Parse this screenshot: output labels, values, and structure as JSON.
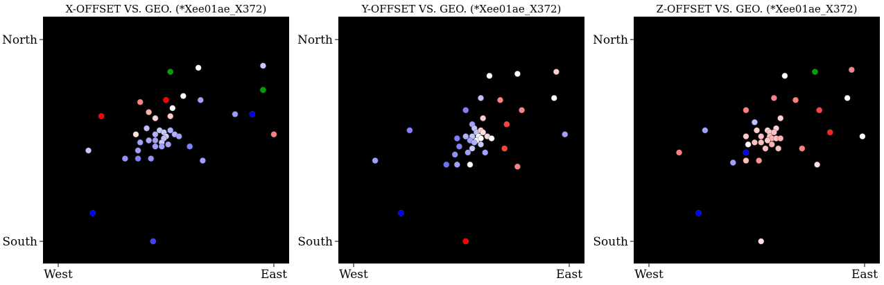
{
  "chart_data": [
    {
      "type": "scatter",
      "title": "X-OFFSET VS. GEO. (*Xee01ae_X372)",
      "xticks": [
        "West",
        "East"
      ],
      "yticks": [
        "South",
        "North"
      ],
      "xlim": [
        0,
        1
      ],
      "ylim": [
        0,
        1
      ],
      "background": "#000000",
      "points": [
        {
          "x": 0.2,
          "y": 0.62,
          "color": "#ff0000"
        },
        {
          "x": 0.5,
          "y": 0.7,
          "color": "#ff0000"
        },
        {
          "x": 0.16,
          "y": 0.14,
          "color": "#0000ff"
        },
        {
          "x": 0.9,
          "y": 0.63,
          "color": "#0000ff"
        },
        {
          "x": 0.52,
          "y": 0.84,
          "color": "#00a000"
        },
        {
          "x": 0.65,
          "y": 0.86,
          "color": "#ffffff"
        },
        {
          "x": 0.95,
          "y": 0.75,
          "color": "#00a000"
        },
        {
          "x": 0.95,
          "y": 0.87,
          "color": "#c8c8ff"
        },
        {
          "x": 0.58,
          "y": 0.72,
          "color": "#ffffff"
        },
        {
          "x": 0.53,
          "y": 0.66,
          "color": "#ffffff"
        },
        {
          "x": 0.52,
          "y": 0.62,
          "color": "#ffc8c8"
        },
        {
          "x": 0.42,
          "y": 0.64,
          "color": "#ffb0a0"
        },
        {
          "x": 0.45,
          "y": 0.61,
          "color": "#ffd0d0"
        },
        {
          "x": 0.38,
          "y": 0.69,
          "color": "#ff8080"
        },
        {
          "x": 1.0,
          "y": 0.53,
          "color": "#ff8080"
        },
        {
          "x": 0.82,
          "y": 0.63,
          "color": "#9898ff"
        },
        {
          "x": 0.66,
          "y": 0.7,
          "color": "#a0a0ff"
        },
        {
          "x": 0.36,
          "y": 0.53,
          "color": "#ffe0e0"
        },
        {
          "x": 0.41,
          "y": 0.56,
          "color": "#c0c0ff"
        },
        {
          "x": 0.45,
          "y": 0.53,
          "color": "#b0b0ff"
        },
        {
          "x": 0.47,
          "y": 0.55,
          "color": "#c8c8ff"
        },
        {
          "x": 0.49,
          "y": 0.54,
          "color": "#c8c8ff"
        },
        {
          "x": 0.5,
          "y": 0.52,
          "color": "#d0d0ff"
        },
        {
          "x": 0.52,
          "y": 0.55,
          "color": "#b0b0ff"
        },
        {
          "x": 0.54,
          "y": 0.53,
          "color": "#b0b0ff"
        },
        {
          "x": 0.56,
          "y": 0.52,
          "color": "#a0a0ff"
        },
        {
          "x": 0.49,
          "y": 0.51,
          "color": "#c0c0ff"
        },
        {
          "x": 0.48,
          "y": 0.49,
          "color": "#c8c8ff"
        },
        {
          "x": 0.42,
          "y": 0.5,
          "color": "#a8a8ff"
        },
        {
          "x": 0.45,
          "y": 0.5,
          "color": "#a0a0ff"
        },
        {
          "x": 0.38,
          "y": 0.49,
          "color": "#a0a0ff"
        },
        {
          "x": 0.48,
          "y": 0.47,
          "color": "#a0a0ff"
        },
        {
          "x": 0.51,
          "y": 0.48,
          "color": "#a0a0ff"
        },
        {
          "x": 0.37,
          "y": 0.45,
          "color": "#a0a0ff"
        },
        {
          "x": 0.45,
          "y": 0.47,
          "color": "#a0a0ff"
        },
        {
          "x": 0.61,
          "y": 0.47,
          "color": "#8080ff"
        },
        {
          "x": 0.14,
          "y": 0.45,
          "color": "#c8c8ff"
        },
        {
          "x": 0.31,
          "y": 0.41,
          "color": "#9090ff"
        },
        {
          "x": 0.37,
          "y": 0.41,
          "color": "#8080ff"
        },
        {
          "x": 0.43,
          "y": 0.41,
          "color": "#9090ff"
        },
        {
          "x": 0.67,
          "y": 0.4,
          "color": "#a0a0ff"
        },
        {
          "x": 0.44,
          "y": 0.0,
          "color": "#4040ff"
        }
      ]
    },
    {
      "type": "scatter",
      "title": "Y-OFFSET VS. GEO. (*Xee01ae_X372)",
      "xticks": [
        "West",
        "East"
      ],
      "yticks": [
        "South",
        "North"
      ],
      "xlim": [
        0,
        1
      ],
      "ylim": [
        0,
        1
      ],
      "background": "#000000",
      "points": [
        {
          "x": 0.26,
          "y": 0.55,
          "color": "#8080ff"
        },
        {
          "x": 0.1,
          "y": 0.4,
          "color": "#a0a0ff"
        },
        {
          "x": 0.22,
          "y": 0.14,
          "color": "#0000ff"
        },
        {
          "x": 0.52,
          "y": 0.0,
          "color": "#ff0000"
        },
        {
          "x": 0.63,
          "y": 0.82,
          "color": "#ffffff"
        },
        {
          "x": 0.76,
          "y": 0.83,
          "color": "#ffffff"
        },
        {
          "x": 0.94,
          "y": 0.84,
          "color": "#ffd0d0"
        },
        {
          "x": 0.59,
          "y": 0.71,
          "color": "#c0c0ff"
        },
        {
          "x": 0.68,
          "y": 0.7,
          "color": "#ff8080"
        },
        {
          "x": 0.93,
          "y": 0.71,
          "color": "#ffffff"
        },
        {
          "x": 0.52,
          "y": 0.65,
          "color": "#8080ff"
        },
        {
          "x": 0.78,
          "y": 0.65,
          "color": "#ff8080"
        },
        {
          "x": 0.6,
          "y": 0.61,
          "color": "#ffc8c8"
        },
        {
          "x": 0.55,
          "y": 0.58,
          "color": "#a0a0ff"
        },
        {
          "x": 0.56,
          "y": 0.56,
          "color": "#c0c0ff"
        },
        {
          "x": 0.57,
          "y": 0.54,
          "color": "#c0c0ff"
        },
        {
          "x": 0.59,
          "y": 0.55,
          "color": "#ffd0d0"
        },
        {
          "x": 0.6,
          "y": 0.54,
          "color": "#ffe0e0"
        },
        {
          "x": 0.58,
          "y": 0.52,
          "color": "#ffffff"
        },
        {
          "x": 0.57,
          "y": 0.5,
          "color": "#ffffff"
        },
        {
          "x": 0.59,
          "y": 0.51,
          "color": "#ffffff"
        },
        {
          "x": 0.62,
          "y": 0.52,
          "color": "#ffd0d0"
        },
        {
          "x": 0.64,
          "y": 0.51,
          "color": "#ffffff"
        },
        {
          "x": 0.55,
          "y": 0.52,
          "color": "#c8c8ff"
        },
        {
          "x": 0.52,
          "y": 0.52,
          "color": "#b0b0ff"
        },
        {
          "x": 0.48,
          "y": 0.51,
          "color": "#8080ff"
        },
        {
          "x": 0.54,
          "y": 0.5,
          "color": "#a0a0ff"
        },
        {
          "x": 0.56,
          "y": 0.49,
          "color": "#b0b0ff"
        },
        {
          "x": 0.55,
          "y": 0.46,
          "color": "#c8c8ff"
        },
        {
          "x": 0.59,
          "y": 0.48,
          "color": "#c8c8ff"
        },
        {
          "x": 0.49,
          "y": 0.47,
          "color": "#8080ff"
        },
        {
          "x": 0.53,
          "y": 0.44,
          "color": "#a0a0ff"
        },
        {
          "x": 0.47,
          "y": 0.43,
          "color": "#9090ff"
        },
        {
          "x": 0.61,
          "y": 0.44,
          "color": "#a0a0ff"
        },
        {
          "x": 0.71,
          "y": 0.58,
          "color": "#ff4040"
        },
        {
          "x": 0.98,
          "y": 0.53,
          "color": "#a0a0ff"
        },
        {
          "x": 0.7,
          "y": 0.46,
          "color": "#ff4040"
        },
        {
          "x": 0.43,
          "y": 0.38,
          "color": "#7070ff"
        },
        {
          "x": 0.48,
          "y": 0.38,
          "color": "#a0a0ff"
        },
        {
          "x": 0.54,
          "y": 0.38,
          "color": "#ffffff"
        },
        {
          "x": 0.76,
          "y": 0.37,
          "color": "#ff8080"
        }
      ]
    },
    {
      "type": "scatter",
      "title": "Z-OFFSET VS. GEO. (*Xee01ae_X372)",
      "xticks": [
        "West",
        "East"
      ],
      "yticks": [
        "South",
        "North"
      ],
      "xlim": [
        0,
        1
      ],
      "ylim": [
        0,
        1
      ],
      "background": "#000000",
      "points": [
        {
          "x": 0.14,
          "y": 0.44,
          "color": "#ff8080"
        },
        {
          "x": 0.26,
          "y": 0.55,
          "color": "#a0a0ff"
        },
        {
          "x": 0.23,
          "y": 0.14,
          "color": "#0000ff"
        },
        {
          "x": 0.52,
          "y": 0.0,
          "color": "#ffe0e0"
        },
        {
          "x": 0.63,
          "y": 0.82,
          "color": "#ffffff"
        },
        {
          "x": 0.77,
          "y": 0.84,
          "color": "#00a000"
        },
        {
          "x": 0.94,
          "y": 0.85,
          "color": "#ff8080"
        },
        {
          "x": 0.58,
          "y": 0.71,
          "color": "#ff8080"
        },
        {
          "x": 0.68,
          "y": 0.7,
          "color": "#ff8080"
        },
        {
          "x": 0.92,
          "y": 0.71,
          "color": "#ffffff"
        },
        {
          "x": 0.45,
          "y": 0.65,
          "color": "#ff8080"
        },
        {
          "x": 0.79,
          "y": 0.65,
          "color": "#ff4040"
        },
        {
          "x": 0.61,
          "y": 0.61,
          "color": "#ffd0d0"
        },
        {
          "x": 0.49,
          "y": 0.59,
          "color": "#c0c0ff"
        },
        {
          "x": 0.59,
          "y": 0.56,
          "color": "#ffd0d0"
        },
        {
          "x": 0.5,
          "y": 0.55,
          "color": "#ffd0d0"
        },
        {
          "x": 0.55,
          "y": 0.55,
          "color": "#ffd0d0"
        },
        {
          "x": 0.56,
          "y": 0.54,
          "color": "#ffc8c8"
        },
        {
          "x": 0.58,
          "y": 0.54,
          "color": "#ffc0c0"
        },
        {
          "x": 0.56,
          "y": 0.52,
          "color": "#ffc0c0"
        },
        {
          "x": 0.57,
          "y": 0.51,
          "color": "#ffb0b0"
        },
        {
          "x": 0.59,
          "y": 0.51,
          "color": "#ffc0c0"
        },
        {
          "x": 0.61,
          "y": 0.51,
          "color": "#ffb0b0"
        },
        {
          "x": 0.52,
          "y": 0.52,
          "color": "#ffc0c0"
        },
        {
          "x": 0.45,
          "y": 0.52,
          "color": "#ffc8c8"
        },
        {
          "x": 0.55,
          "y": 0.5,
          "color": "#ffc8c8"
        },
        {
          "x": 0.49,
          "y": 0.49,
          "color": "#ffc0c0"
        },
        {
          "x": 0.52,
          "y": 0.49,
          "color": "#ffc0c0"
        },
        {
          "x": 0.57,
          "y": 0.48,
          "color": "#ffb0b0"
        },
        {
          "x": 0.46,
          "y": 0.48,
          "color": "#ffffff"
        },
        {
          "x": 0.6,
          "y": 0.46,
          "color": "#ffc0c0"
        },
        {
          "x": 0.54,
          "y": 0.46,
          "color": "#ffc0c0"
        },
        {
          "x": 0.45,
          "y": 0.44,
          "color": "#0000ff"
        },
        {
          "x": 0.71,
          "y": 0.46,
          "color": "#ff8080"
        },
        {
          "x": 0.84,
          "y": 0.54,
          "color": "#ff2020"
        },
        {
          "x": 0.99,
          "y": 0.52,
          "color": "#ffffff"
        },
        {
          "x": 0.39,
          "y": 0.39,
          "color": "#a0a0ff"
        },
        {
          "x": 0.45,
          "y": 0.4,
          "color": "#ffc0c0"
        },
        {
          "x": 0.51,
          "y": 0.4,
          "color": "#ff9090"
        },
        {
          "x": 0.78,
          "y": 0.38,
          "color": "#ffe0e0"
        }
      ]
    }
  ]
}
